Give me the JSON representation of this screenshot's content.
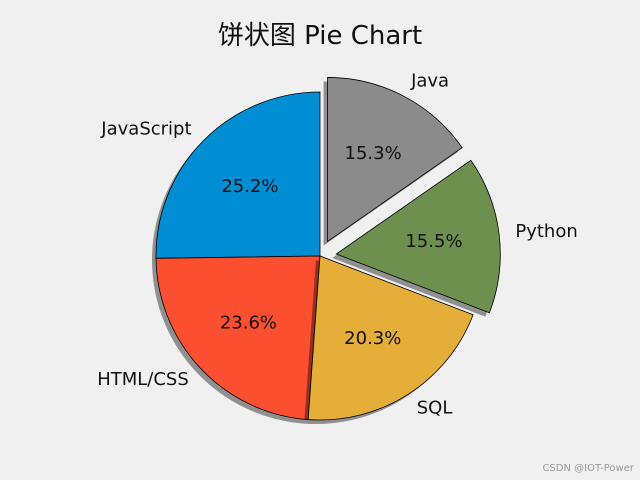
{
  "chart_data": {
    "type": "pie",
    "title": "饼状图 Pie Chart",
    "slices": [
      {
        "label": "JavaScript",
        "value": 25.2,
        "pct_label": "25.2%",
        "color": "#008fd5",
        "explode": 0
      },
      {
        "label": "HTML/CSS",
        "value": 23.6,
        "pct_label": "23.6%",
        "color": "#fc4f30",
        "explode": 0
      },
      {
        "label": "SQL",
        "value": 20.3,
        "pct_label": "20.3%",
        "color": "#e5ae38",
        "explode": 0
      },
      {
        "label": "Python",
        "value": 15.5,
        "pct_label": "15.5%",
        "color": "#6d904f",
        "explode": 0.1
      },
      {
        "label": "Java",
        "value": 15.3,
        "pct_label": "15.3%",
        "color": "#8b8b8b",
        "explode": 0.1
      }
    ],
    "start_angle": 90,
    "shadow": true
  },
  "watermark": "CSDN @IOT-Power"
}
